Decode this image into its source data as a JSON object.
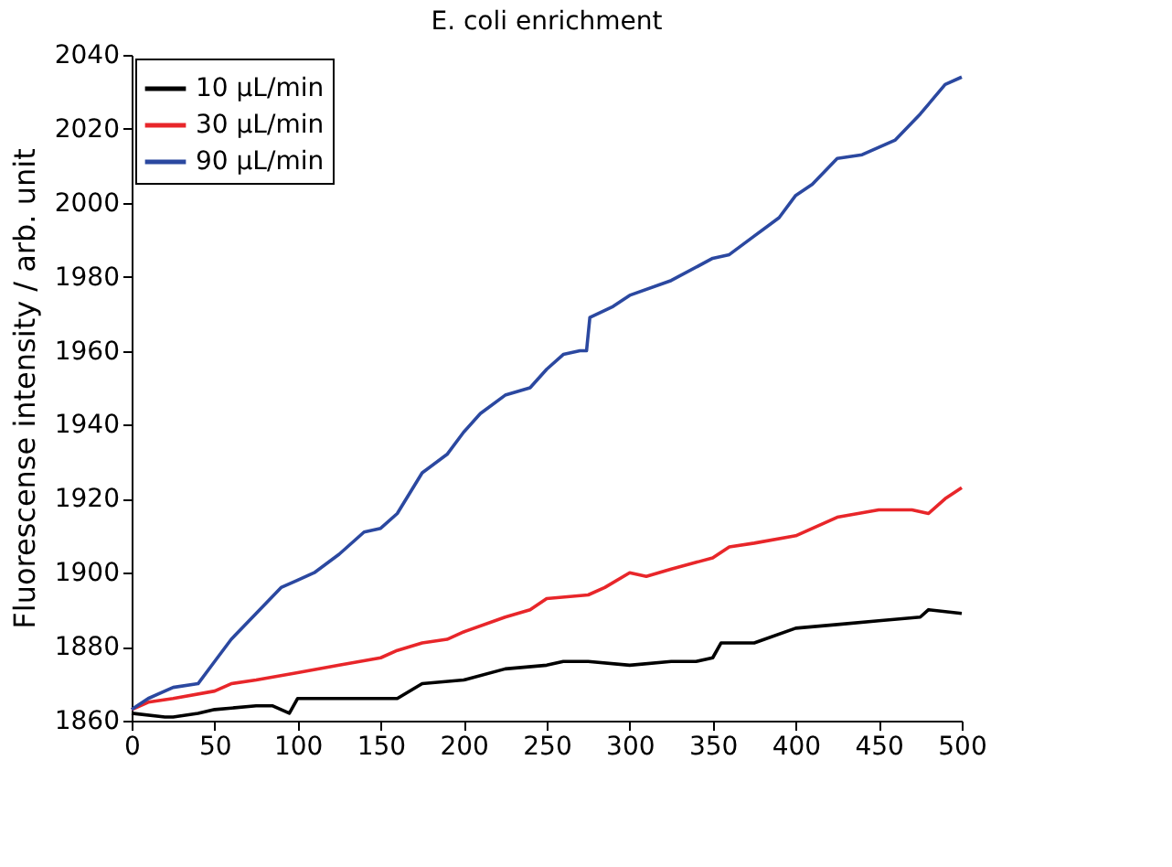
{
  "chart_data": {
    "type": "line",
    "title": "E. coli enrichment",
    "ylabel": "Fluorescense intensity / arb. unit",
    "xlim": [
      0,
      500
    ],
    "xticks": [
      0,
      50,
      100,
      150,
      200,
      250,
      300,
      350,
      400,
      450,
      500
    ],
    "ylim": [
      1860,
      2040
    ],
    "yticks": [
      1860,
      1880,
      1900,
      1920,
      1940,
      1960,
      1980,
      2000,
      2020,
      2040
    ],
    "grid": false,
    "legend": "top left",
    "marker": "none",
    "line_style": "solid",
    "series": [
      {
        "name": "10 μL/min",
        "color": "#000000",
        "x": [
          0,
          20,
          25,
          40,
          50,
          75,
          85,
          95,
          100,
          125,
          150,
          160,
          175,
          200,
          225,
          250,
          260,
          275,
          300,
          325,
          340,
          350,
          355,
          375,
          400,
          425,
          450,
          475,
          480,
          500
        ],
        "values": [
          1862,
          1861,
          1861,
          1862,
          1863,
          1864,
          1864,
          1862,
          1866,
          1866,
          1866,
          1866,
          1870,
          1871,
          1874,
          1875,
          1876,
          1876,
          1875,
          1876,
          1876,
          1877,
          1881,
          1881,
          1885,
          1886,
          1887,
          1888,
          1890,
          1889
        ]
      },
      {
        "name": "30 μL/min",
        "color": "#e8262a",
        "x": [
          0,
          10,
          25,
          50,
          60,
          75,
          100,
          125,
          150,
          160,
          175,
          190,
          200,
          225,
          240,
          250,
          275,
          285,
          300,
          310,
          325,
          350,
          360,
          375,
          400,
          425,
          450,
          470,
          480,
          490,
          500
        ],
        "values": [
          1863,
          1865,
          1866,
          1868,
          1870,
          1871,
          1873,
          1875,
          1877,
          1879,
          1881,
          1882,
          1884,
          1888,
          1890,
          1893,
          1894,
          1896,
          1900,
          1899,
          1901,
          1904,
          1907,
          1908,
          1910,
          1915,
          1917,
          1917,
          1916,
          1920,
          1923
        ]
      },
      {
        "name": "90 μL/min",
        "color": "#2b48a0",
        "x": [
          0,
          10,
          25,
          40,
          50,
          60,
          75,
          90,
          100,
          110,
          125,
          140,
          150,
          160,
          175,
          190,
          200,
          210,
          225,
          240,
          250,
          260,
          270,
          274,
          276,
          290,
          300,
          325,
          350,
          360,
          375,
          390,
          400,
          410,
          425,
          440,
          450,
          460,
          475,
          490,
          500
        ],
        "values": [
          1863,
          1866,
          1869,
          1870,
          1876,
          1882,
          1889,
          1896,
          1898,
          1900,
          1905,
          1911,
          1912,
          1916,
          1927,
          1932,
          1938,
          1943,
          1948,
          1950,
          1955,
          1959,
          1960,
          1960,
          1969,
          1972,
          1975,
          1979,
          1985,
          1986,
          1991,
          1996,
          2002,
          2005,
          2012,
          2013,
          2015,
          2017,
          2024,
          2032,
          2034
        ]
      }
    ]
  }
}
